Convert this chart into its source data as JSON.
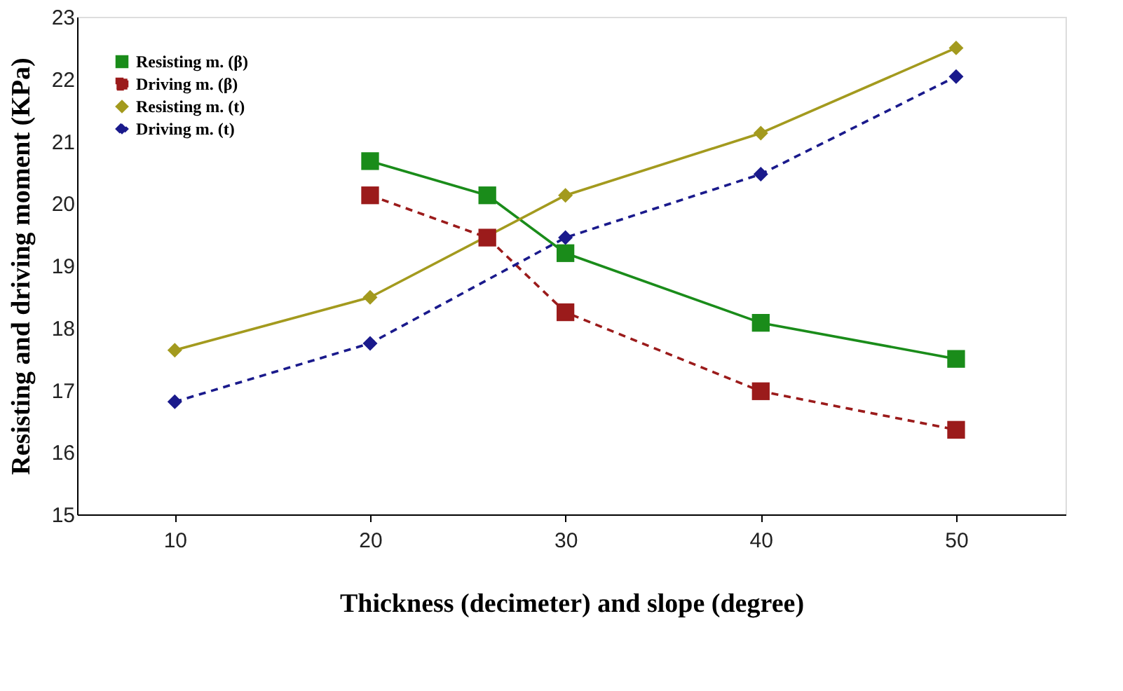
{
  "chart_data": {
    "type": "line",
    "xlabel": "Thickness (decimeter) and slope (degree)",
    "ylabel": "Resisting and driving moment (KPa)",
    "xlim": [
      5,
      55.6
    ],
    "xticks": [
      10,
      20,
      30,
      40,
      50
    ],
    "ylim": [
      15,
      23
    ],
    "yticks": [
      15,
      16,
      17,
      18,
      19,
      20,
      21,
      22,
      23
    ],
    "grid": false,
    "legend": "top left",
    "series": [
      {
        "name": "Resisting m. (β)",
        "color": "#1a8c1a",
        "marker": "square",
        "line_style": "solid",
        "x": [
          20,
          26,
          30,
          40,
          50
        ],
        "values": [
          20.68,
          20.13,
          19.2,
          18.08,
          17.5
        ]
      },
      {
        "name": "Driving m. (β)",
        "color": "#9b1b1b",
        "marker": "square",
        "line_style": "dashed",
        "x": [
          20,
          26,
          30,
          40,
          50
        ],
        "values": [
          20.13,
          19.45,
          18.25,
          16.98,
          16.36
        ]
      },
      {
        "name": "Resisting m. (t)",
        "color": "#a39a1e",
        "marker": "diamond",
        "line_style": "solid",
        "x": [
          10,
          20,
          30,
          40,
          50
        ],
        "values": [
          17.64,
          18.49,
          20.13,
          21.13,
          22.5
        ]
      },
      {
        "name": "Driving m. (t)",
        "color": "#1a1a8c",
        "marker": "diamond",
        "line_style": "dashed",
        "x": [
          10,
          20,
          30,
          40,
          50
        ],
        "values": [
          16.81,
          17.75,
          19.45,
          20.47,
          22.04
        ]
      }
    ]
  }
}
